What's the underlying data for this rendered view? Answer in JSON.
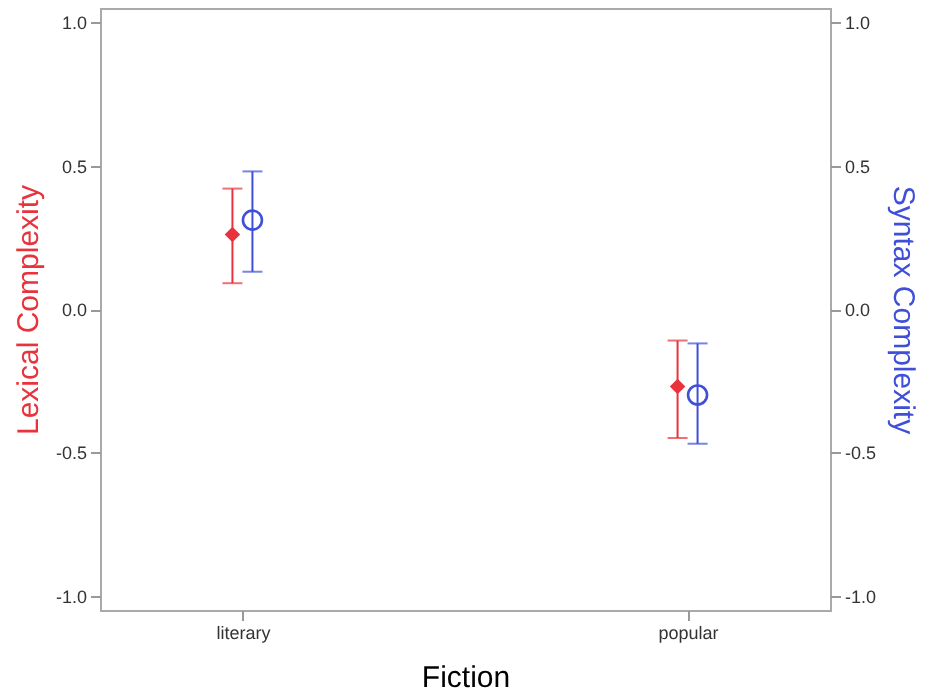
{
  "chart_data": {
    "type": "scatter",
    "xlabel": "Fiction",
    "ylabel": "Lexical Complexity",
    "y2label": "Syntax Complexity",
    "categories": [
      "literary",
      "popular"
    ],
    "ylim": [
      -1.05,
      1.05
    ],
    "yticks": [
      {
        "value": -1,
        "label": "-1.0"
      },
      {
        "value": -0.5,
        "label": "-0.5"
      },
      {
        "value": 0,
        "label": "0.0"
      },
      {
        "value": 0.5,
        "label": "0.5"
      },
      {
        "value": 1,
        "label": "1.0"
      }
    ],
    "y2lim": [
      -1.05,
      1.05
    ],
    "y2ticks": [
      {
        "value": -1,
        "label": "-1.0"
      },
      {
        "value": -0.5,
        "label": "-0.5"
      },
      {
        "value": 0,
        "label": "0.0"
      },
      {
        "value": 0.5,
        "label": "0.5"
      },
      {
        "value": 1,
        "label": "1.0"
      }
    ],
    "series": [
      {
        "color": "#e8323c",
        "marker": "diamond",
        "values": [
          0.26,
          -0.27
        ],
        "errors": [
          [
            0.09,
            0.42
          ],
          [
            -0.45,
            -0.11
          ]
        ]
      },
      {
        "color": "#3f4fd8",
        "marker": "circle",
        "axis": "y2",
        "values": [
          0.31,
          -0.3
        ],
        "errors": [
          [
            0.13,
            0.48
          ],
          [
            -0.47,
            -0.12
          ]
        ]
      }
    ]
  }
}
